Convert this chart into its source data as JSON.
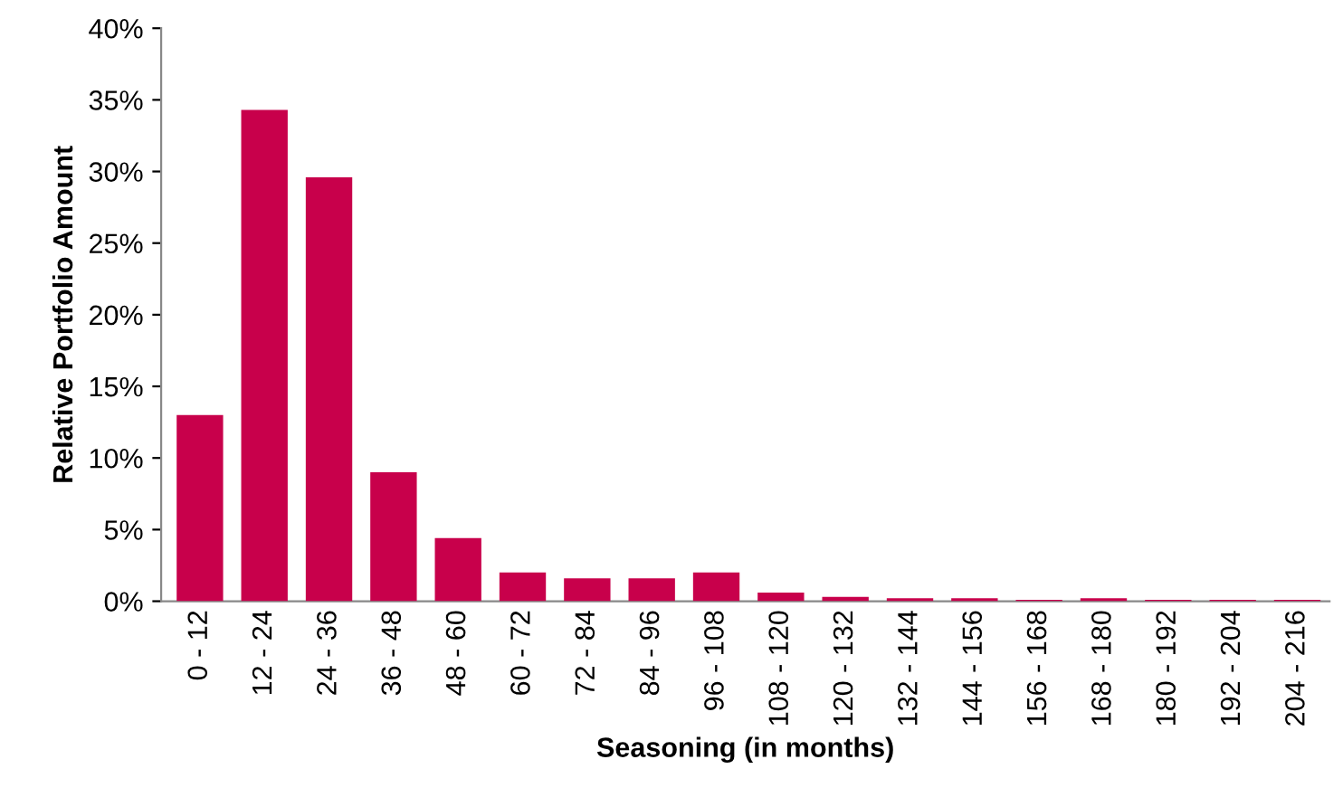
{
  "chart_data": {
    "type": "bar",
    "xlabel": "Seasoning (in months)",
    "ylabel": "Relative Portfolio Amount",
    "categories": [
      "0 - 12",
      "12 - 24",
      "24 - 36",
      "36 - 48",
      "48 - 60",
      "60 - 72",
      "72 - 84",
      "84 - 96",
      "96 - 108",
      "108 - 120",
      "120 - 132",
      "132 - 144",
      "144 - 156",
      "156 - 168",
      "168 - 180",
      "180 - 192",
      "192 - 204",
      "204 - 216"
    ],
    "values": [
      13.0,
      34.3,
      29.6,
      9.0,
      4.4,
      2.0,
      1.6,
      1.6,
      2.0,
      0.6,
      0.3,
      0.2,
      0.2,
      0.1,
      0.2,
      0.1,
      0.1,
      0.1
    ],
    "color": "#c8004b",
    "ylim": [
      0,
      40
    ],
    "yticks": [
      {
        "value": 0,
        "label": "0%"
      },
      {
        "value": 5,
        "label": "5%"
      },
      {
        "value": 10,
        "label": "10%"
      },
      {
        "value": 15,
        "label": "15%"
      },
      {
        "value": 20,
        "label": "20%"
      },
      {
        "value": 25,
        "label": "25%"
      },
      {
        "value": 30,
        "label": "30%"
      },
      {
        "value": 35,
        "label": "35%"
      },
      {
        "value": 40,
        "label": "40%"
      }
    ],
    "grid": false,
    "legend": false
  }
}
